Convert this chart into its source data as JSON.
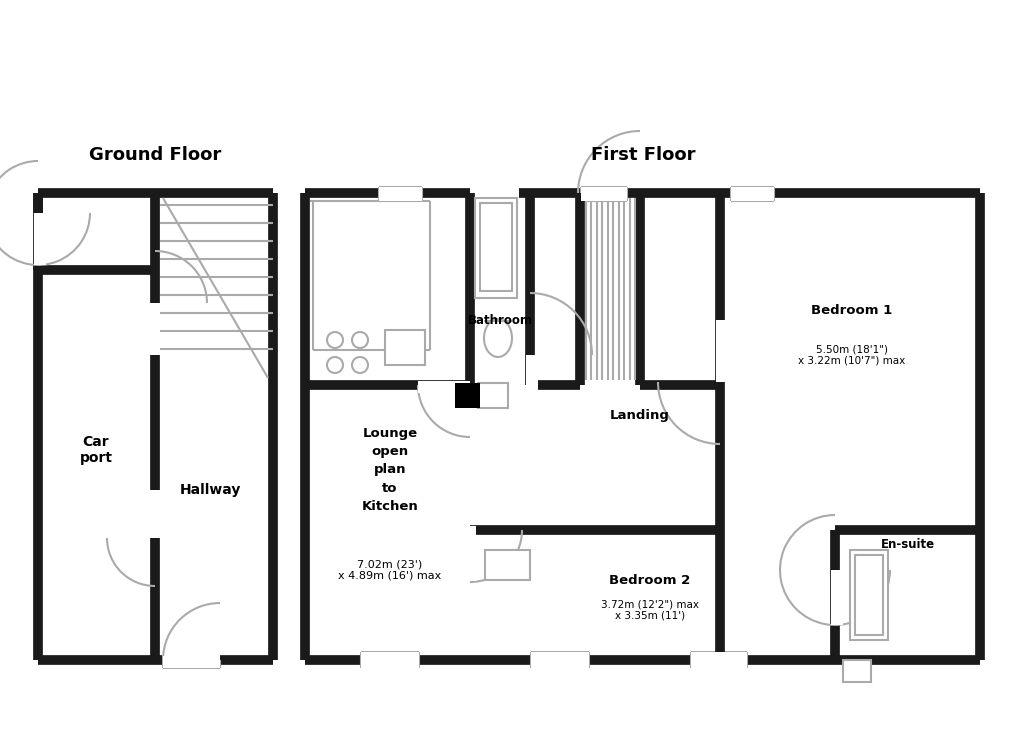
{
  "bg_color": "#ffffff",
  "wall_color": "#1a1a1a",
  "title_ground": "Ground Floor",
  "title_first": "First Floor",
  "rooms": {
    "lounge": {
      "label": "Lounge\nopen\nplan\nto\nKitchen",
      "sublabel": "7.02m (23')\nx 4.89m (16') max"
    },
    "bathroom": {
      "label": "Bathroom"
    },
    "landing": {
      "label": "Landing"
    },
    "bedroom1": {
      "label": "Bedroom 1",
      "sublabel": "5.50m (18'1\")\nx 3.22m (10'7\") max"
    },
    "bedroom2": {
      "label": "Bedroom 2",
      "sublabel": "3.72m (12'2\") max\nx 3.35m (11')"
    },
    "ensuite": {
      "label": "En-suite"
    },
    "carport": {
      "label": "Car\nport"
    },
    "hallway": {
      "label": "Hallway"
    }
  }
}
